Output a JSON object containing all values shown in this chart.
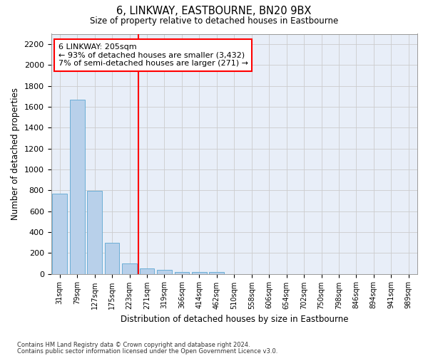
{
  "title": "6, LINKWAY, EASTBOURNE, BN20 9BX",
  "subtitle": "Size of property relative to detached houses in Eastbourne",
  "xlabel": "Distribution of detached houses by size in Eastbourne",
  "ylabel": "Number of detached properties",
  "footnote1": "Contains HM Land Registry data © Crown copyright and database right 2024.",
  "footnote2": "Contains public sector information licensed under the Open Government Licence v3.0.",
  "bar_labels": [
    "31sqm",
    "79sqm",
    "127sqm",
    "175sqm",
    "223sqm",
    "271sqm",
    "319sqm",
    "366sqm",
    "414sqm",
    "462sqm",
    "510sqm",
    "558sqm",
    "606sqm",
    "654sqm",
    "702sqm",
    "750sqm",
    "798sqm",
    "846sqm",
    "894sqm",
    "941sqm",
    "989sqm"
  ],
  "bar_values": [
    770,
    1670,
    795,
    300,
    100,
    50,
    35,
    20,
    15,
    15,
    0,
    0,
    0,
    0,
    0,
    0,
    0,
    0,
    0,
    0,
    0
  ],
  "bar_color": "#b8d0ea",
  "bar_edgecolor": "#6baed6",
  "ylim": [
    0,
    2300
  ],
  "yticks": [
    0,
    200,
    400,
    600,
    800,
    1000,
    1200,
    1400,
    1600,
    1800,
    2000,
    2200
  ],
  "property_line_x": 4.5,
  "annotation_line1": "6 LINKWAY: 205sqm",
  "annotation_line2": "← 93% of detached houses are smaller (3,432)",
  "annotation_line3": "7% of semi-detached houses are larger (271) →",
  "vline_color": "red",
  "annotation_box_color": "white",
  "annotation_box_edgecolor": "red",
  "grid_color": "#cccccc",
  "background_color": "#e8eef8"
}
